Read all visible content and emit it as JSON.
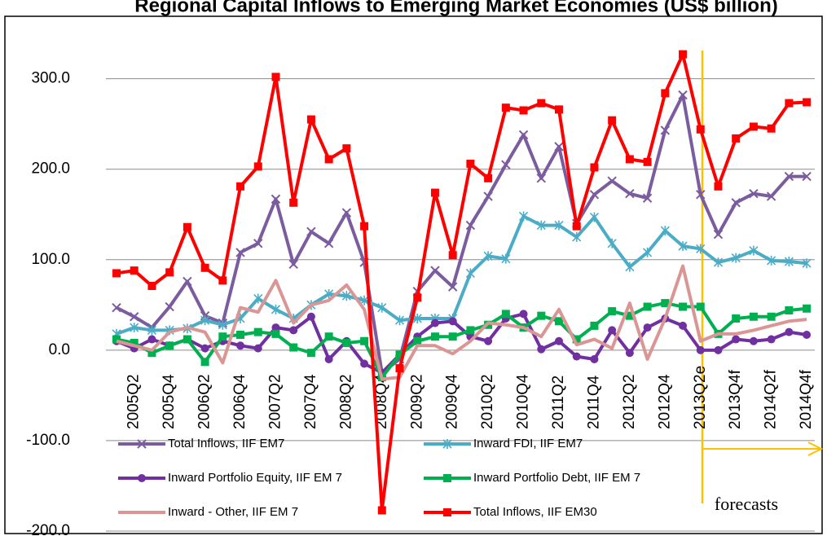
{
  "chart_data": {
    "type": "line",
    "title": "Regional Capital Inflows to Emerging Market Economies (US$ billion)",
    "annotation": "forecasts",
    "categories": [
      null,
      "2005Q2",
      null,
      "2005Q4",
      null,
      "2006Q2",
      null,
      "2006Q4",
      null,
      "2007Q2",
      null,
      "2007Q4",
      null,
      "2008Q2",
      null,
      "2008Q4",
      null,
      "2009Q2",
      null,
      "2009Q4",
      null,
      "2010Q2",
      null,
      "2010Q4",
      null,
      "2011Q2",
      null,
      "2011Q4",
      null,
      "2012Q2",
      null,
      "2012Q4",
      null,
      "2013Q2e",
      null,
      "2013Q4f",
      null,
      "2014Q2f",
      null,
      "2014Q4f"
    ],
    "ylim": [
      -200,
      360
    ],
    "yticks": [
      {
        "value": -200,
        "label": "-200.0"
      },
      {
        "value": -100,
        "label": "-100.0"
      },
      {
        "value": 0,
        "label": "0.0"
      },
      {
        "value": 100,
        "label": "100.0"
      },
      {
        "value": 200,
        "label": "200.0"
      },
      {
        "value": 300,
        "label": "300.0"
      }
    ],
    "grid": true,
    "series": [
      {
        "name": "Total Inflows, IIF EM7",
        "color": "#7b5c9e",
        "marker": "x",
        "values": [
          47,
          37,
          25,
          48,
          76,
          38,
          30,
          108,
          118,
          167,
          95,
          131,
          118,
          152,
          97,
          -25,
          -10,
          65,
          88,
          70,
          138,
          170,
          205,
          238,
          190,
          225,
          140,
          172,
          187,
          173,
          168,
          243,
          282,
          172,
          128,
          163,
          173,
          170,
          192,
          192
        ]
      },
      {
        "name": "Inward FDI, IIF EM7",
        "color": "#4bacc6",
        "marker": "star",
        "values": [
          18,
          25,
          22,
          22,
          24,
          33,
          28,
          35,
          57,
          45,
          35,
          50,
          62,
          60,
          55,
          47,
          33,
          35,
          35,
          35,
          85,
          104,
          101,
          148,
          138,
          138,
          125,
          147,
          118,
          92,
          108,
          132,
          115,
          112,
          97,
          102,
          110,
          99,
          98,
          96
        ]
      },
      {
        "name": "Inward Portfolio Equity, IIF EM 7",
        "color": "#7030a0",
        "marker": "circle",
        "values": [
          10,
          2,
          12,
          5,
          12,
          2,
          10,
          5,
          2,
          25,
          22,
          37,
          -10,
          10,
          -15,
          -25,
          -5,
          15,
          30,
          32,
          15,
          10,
          35,
          40,
          1,
          10,
          -7,
          -10,
          22,
          -3,
          25,
          35,
          27,
          0,
          0,
          12,
          10,
          12,
          20,
          17
        ]
      },
      {
        "name": "Inward Portfolio Debt, IIF EM 7",
        "color": "#00b050",
        "marker": "square",
        "values": [
          12,
          8,
          -3,
          5,
          12,
          -13,
          15,
          17,
          20,
          18,
          3,
          -3,
          15,
          8,
          10,
          -30,
          -5,
          10,
          15,
          15,
          22,
          28,
          40,
          25,
          38,
          32,
          12,
          27,
          43,
          38,
          48,
          52,
          48,
          48,
          18,
          35,
          37,
          37,
          44,
          46
        ]
      },
      {
        "name": "Inward - Other, IIF EM 7",
        "color": "#d99694",
        "marker": "none",
        "values": [
          10,
          5,
          0,
          20,
          25,
          20,
          -14,
          47,
          42,
          77,
          30,
          50,
          55,
          72,
          45,
          -32,
          -30,
          5,
          5,
          -4,
          10,
          30,
          28,
          25,
          15,
          45,
          6,
          12,
          2,
          52,
          -10,
          35,
          93,
          10,
          18,
          18,
          22,
          27,
          32,
          34
        ]
      },
      {
        "name": "Total Inflows, IIF EM30",
        "color": "#ff0000",
        "marker": "square",
        "values": [
          85,
          88,
          71,
          86,
          136,
          91,
          77,
          181,
          203,
          302,
          163,
          255,
          211,
          223,
          137,
          -177,
          -20,
          58,
          174,
          105,
          206,
          190,
          268,
          265,
          273,
          266,
          137,
          202,
          254,
          211,
          208,
          284,
          327,
          244,
          181,
          234,
          247,
          245,
          273,
          274
        ]
      }
    ]
  }
}
